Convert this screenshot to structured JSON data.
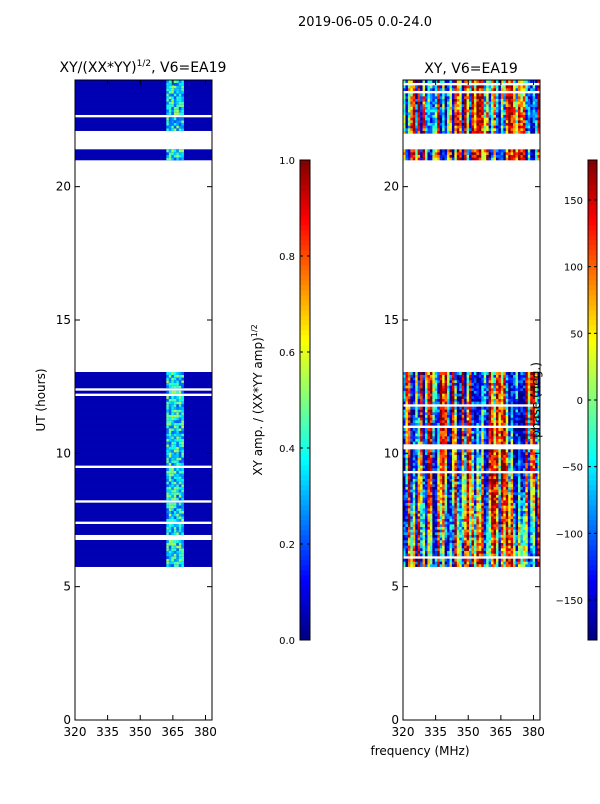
{
  "figure": {
    "suptitle": "2019-06-05 0.0-24.0"
  },
  "chart_data": [
    {
      "type": "heatmap",
      "title": "XY/(XX*YY)",
      "title_sup": "1/2",
      "title_suffix": ", V6=EA19",
      "xlabel": "",
      "ylabel": "UT (hours)",
      "xlim": [
        320,
        383
      ],
      "ylim": [
        0,
        24
      ],
      "xticks": [
        320,
        335,
        350,
        365,
        380
      ],
      "yticks": [
        0,
        5,
        10,
        15,
        20
      ],
      "colormap": "jet",
      "colorbar": {
        "range": [
          0.0,
          1.0
        ],
        "ticks": [
          "0.0",
          "0.2",
          "0.4",
          "0.6",
          "0.8",
          "1.0"
        ],
        "label": "XY amp. / (XX*YY amp)",
        "label_sup": "1/2"
      },
      "observed_hours": [
        [
          5.75,
          13.0
        ],
        [
          21.0,
          21.4
        ],
        [
          22.0,
          24.0
        ]
      ],
      "bright_band_mhz": [
        362,
        370
      ],
      "background_level": 0.05
    },
    {
      "type": "heatmap",
      "title": "XY, V6=EA19",
      "xlabel": "frequency (MHz)",
      "ylabel": "",
      "xlim": [
        320,
        383
      ],
      "ylim": [
        0,
        24
      ],
      "xticks": [
        320,
        335,
        350,
        365,
        380
      ],
      "yticks": [
        0,
        5,
        10,
        15,
        20
      ],
      "colormap": "jet",
      "colorbar": {
        "range": [
          -180,
          180
        ],
        "ticks": [
          "−150",
          "−100",
          "−50",
          "0",
          "50",
          "100",
          "150"
        ],
        "label": "phase (deg.)"
      },
      "observed_hours": [
        [
          5.75,
          13.0
        ],
        [
          21.0,
          21.4
        ],
        [
          22.0,
          24.0
        ]
      ]
    }
  ]
}
